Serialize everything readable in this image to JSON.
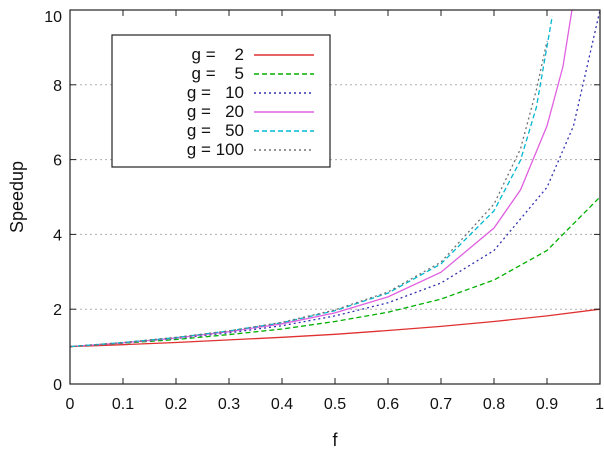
{
  "chart_data": {
    "type": "line",
    "title": "",
    "xlabel": "f",
    "ylabel": "Speedup",
    "xlim": [
      0,
      1
    ],
    "ylim": [
      0,
      10
    ],
    "x_ticks": [
      0,
      0.1,
      0.2,
      0.3,
      0.4,
      0.5,
      0.6,
      0.7,
      0.8,
      0.9,
      1
    ],
    "x_tick_labels": [
      "0",
      "0.1",
      "0.2",
      "0.3",
      "0.4",
      "0.5",
      "0.6",
      "0.7",
      "0.8",
      "0.9",
      "1"
    ],
    "y_ticks": [
      0,
      2,
      4,
      6,
      8,
      10
    ],
    "y_tick_labels": [
      "0",
      "2",
      "4",
      "6",
      "8",
      "10"
    ],
    "grid": "horizontal dotted",
    "legend_position": "top-left",
    "series": [
      {
        "name": "g =    2",
        "color": "#e03030",
        "dash": "solid",
        "x": [
          0,
          0.1,
          0.2,
          0.3,
          0.4,
          0.5,
          0.6,
          0.7,
          0.8,
          0.9,
          1
        ],
        "values": [
          1,
          1.05,
          1.11,
          1.18,
          1.25,
          1.33,
          1.43,
          1.54,
          1.67,
          1.82,
          2
        ]
      },
      {
        "name": "g =    5",
        "color": "#00b000",
        "dash": "dashed",
        "x": [
          0,
          0.1,
          0.2,
          0.3,
          0.4,
          0.5,
          0.6,
          0.7,
          0.8,
          0.9,
          1
        ],
        "values": [
          1,
          1.09,
          1.19,
          1.32,
          1.47,
          1.67,
          1.92,
          2.27,
          2.78,
          3.57,
          5
        ]
      },
      {
        "name": "g =   10",
        "color": "#3030b0",
        "dash": "dotted",
        "x": [
          0,
          0.1,
          0.2,
          0.3,
          0.4,
          0.5,
          0.6,
          0.7,
          0.8,
          0.9,
          0.95,
          1
        ],
        "values": [
          1,
          1.1,
          1.22,
          1.37,
          1.56,
          1.82,
          2.17,
          2.7,
          3.57,
          5.26,
          6.9,
          10
        ]
      },
      {
        "name": "g =   20",
        "color": "#e060e0",
        "dash": "solid",
        "x": [
          0,
          0.1,
          0.2,
          0.3,
          0.4,
          0.5,
          0.6,
          0.7,
          0.8,
          0.85,
          0.9,
          0.93,
          0.95
        ],
        "values": [
          1,
          1.1,
          1.23,
          1.4,
          1.61,
          1.9,
          2.33,
          2.99,
          4.17,
          5.19,
          6.9,
          8.48,
          10.26
        ]
      },
      {
        "name": "g =   50",
        "color": "#00b8d0",
        "dash": "dashed",
        "x": [
          0,
          0.1,
          0.2,
          0.3,
          0.4,
          0.5,
          0.6,
          0.7,
          0.8,
          0.85,
          0.88,
          0.91
        ],
        "values": [
          1,
          1.11,
          1.24,
          1.42,
          1.64,
          1.96,
          2.43,
          3.21,
          4.63,
          5.98,
          7.4,
          9.84
        ]
      },
      {
        "name": "g = 100",
        "color": "#707070",
        "dash": "dotted",
        "x": [
          0,
          0.1,
          0.2,
          0.3,
          0.4,
          0.5,
          0.6,
          0.7,
          0.8,
          0.85,
          0.88,
          0.9
        ],
        "values": [
          1,
          1.11,
          1.25,
          1.42,
          1.65,
          1.98,
          2.46,
          3.26,
          4.81,
          6.29,
          7.87,
          9.17
        ]
      }
    ]
  }
}
